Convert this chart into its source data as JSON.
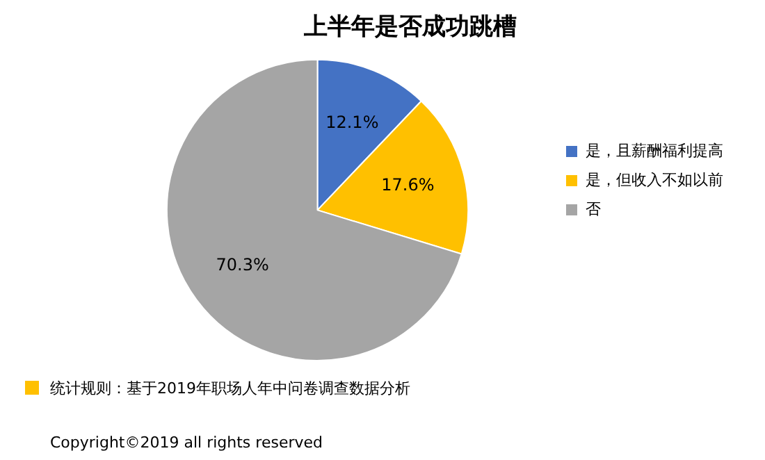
{
  "chart_data": {
    "type": "pie",
    "title": "上半年是否成功跳槽",
    "categories": [
      "是，且薪酬福利提高",
      "是，但收入不如以前",
      "否"
    ],
    "values": [
      12.1,
      17.6,
      70.3
    ],
    "colors": [
      "#4472c4",
      "#ffc000",
      "#a5a5a5"
    ],
    "value_labels": [
      "12.1%",
      "17.6%",
      "70.3%"
    ],
    "legend": "right",
    "annotations": [
      "统计规则：基于2019年职场人年中问卷调查数据分析",
      "Copyright©2019 all rights reserved"
    ]
  }
}
